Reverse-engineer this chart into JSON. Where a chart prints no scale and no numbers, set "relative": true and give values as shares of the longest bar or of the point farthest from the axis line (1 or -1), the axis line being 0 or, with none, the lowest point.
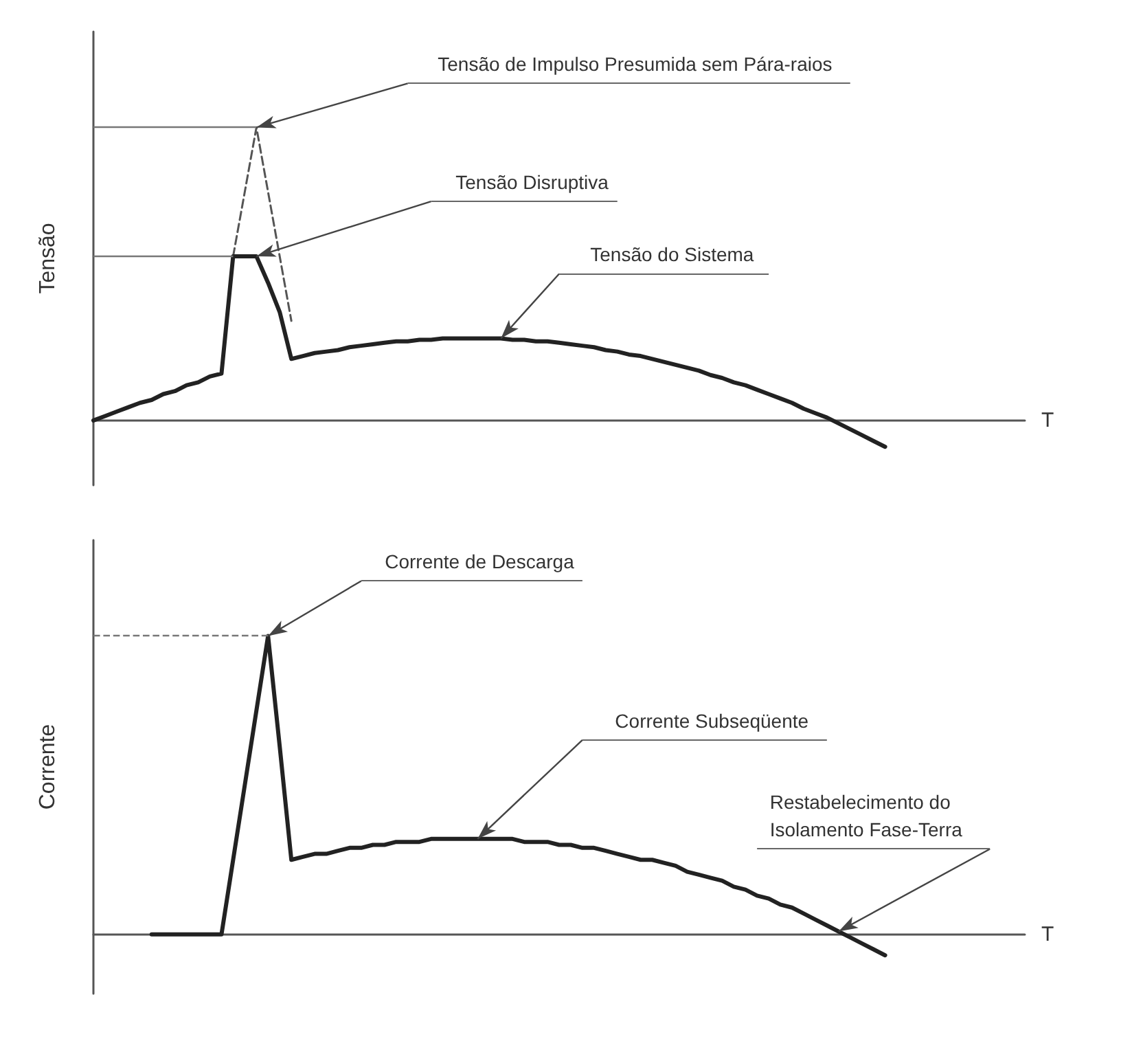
{
  "chart_data": [
    {
      "type": "line",
      "relative": true,
      "xlabel": "T",
      "ylabel": "Tensão",
      "grid": false,
      "marker": "none",
      "categories": [
        null,
        null,
        null,
        null,
        null,
        null,
        null,
        null,
        null,
        null,
        null,
        null,
        null,
        null,
        null,
        null,
        null,
        null,
        null,
        null,
        null,
        null,
        null,
        null,
        null,
        null,
        null,
        null,
        null,
        null,
        null,
        null,
        null,
        null,
        null,
        null,
        null,
        null,
        null,
        null,
        null,
        null,
        null,
        null,
        null,
        null,
        null,
        null,
        null,
        null,
        null,
        null,
        null,
        null,
        null,
        null,
        null,
        null,
        null,
        null,
        null,
        null,
        null,
        null,
        null,
        null,
        null,
        null,
        null,
        null,
        null,
        null,
        null,
        null,
        null,
        null,
        null,
        null,
        null,
        null,
        null
      ],
      "series": [
        {
          "color": "#222222",
          "values": [
            0,
            0.015,
            0.03,
            0.045,
            0.06,
            0.07,
            0.09,
            0.1,
            0.12,
            0.13,
            0.15,
            0.16,
            0.56,
            0.56,
            0.56,
            0.47,
            0.37,
            0.21,
            0.22,
            0.23,
            0.235,
            0.24,
            0.25,
            0.255,
            0.26,
            0.265,
            0.27,
            0.27,
            0.275,
            0.275,
            0.28,
            0.28,
            0.28,
            0.28,
            0.28,
            0.28,
            0.275,
            0.275,
            0.27,
            0.27,
            0.265,
            0.26,
            0.255,
            0.25,
            0.24,
            0.235,
            0.225,
            0.22,
            0.21,
            0.2,
            0.19,
            0.18,
            0.17,
            0.155,
            0.145,
            0.13,
            0.12,
            0.105,
            0.09,
            0.075,
            0.06,
            0.04,
            0.025,
            0.01,
            -0.01,
            -0.03,
            -0.05,
            -0.07,
            -0.09,
            null,
            null,
            null,
            null,
            null,
            null,
            null,
            null,
            null,
            null,
            null,
            null
          ]
        },
        {
          "color": "#555555",
          "line_style": "dashed",
          "values": [
            null,
            null,
            null,
            null,
            null,
            null,
            null,
            null,
            null,
            null,
            null,
            null,
            0.56,
            0.78,
            1,
            0.78,
            0.56,
            0.34,
            null,
            null,
            null,
            null,
            null,
            null,
            null,
            null,
            null,
            null,
            null,
            null,
            null,
            null,
            null,
            null,
            null,
            null,
            null,
            null,
            null,
            null,
            null,
            null,
            null,
            null,
            null,
            null,
            null,
            null,
            null,
            null,
            null,
            null,
            null,
            null,
            null,
            null,
            null,
            null,
            null,
            null,
            null,
            null,
            null,
            null,
            null,
            null,
            null,
            null,
            null,
            null,
            null,
            null,
            null,
            null,
            null,
            null,
            null,
            null,
            null,
            null,
            null
          ]
        }
      ],
      "ref_lines": [
        {
          "axis": "y",
          "value": 1,
          "color": "#777777",
          "line_style": "solid"
        },
        {
          "axis": "y",
          "value": 0.56,
          "color": "#777777",
          "line_style": "solid"
        }
      ],
      "annotations": [
        "Tensão de Impulso Presumida sem Pára-raios",
        "Tensão Disruptiva",
        "Tensão do Sistema"
      ]
    },
    {
      "type": "line",
      "relative": true,
      "xlabel": "T",
      "ylabel": "Corrente",
      "grid": false,
      "marker": "none",
      "categories": [
        null,
        null,
        null,
        null,
        null,
        null,
        null,
        null,
        null,
        null,
        null,
        null,
        null,
        null,
        null,
        null,
        null,
        null,
        null,
        null,
        null,
        null,
        null,
        null,
        null,
        null,
        null,
        null,
        null,
        null,
        null,
        null,
        null,
        null,
        null,
        null,
        null,
        null,
        null,
        null,
        null,
        null,
        null,
        null,
        null,
        null,
        null,
        null,
        null,
        null,
        null,
        null,
        null,
        null,
        null,
        null,
        null,
        null,
        null,
        null,
        null,
        null,
        null,
        null,
        null,
        null,
        null,
        null,
        null,
        null,
        null,
        null,
        null,
        null,
        null,
        null,
        null,
        null,
        null,
        null,
        null
      ],
      "series": [
        {
          "color": "#222222",
          "values": [
            null,
            null,
            null,
            null,
            null,
            0,
            0,
            0,
            0,
            0,
            0,
            0,
            0.25,
            0.5,
            0.75,
            1,
            0.63,
            0.25,
            0.26,
            0.27,
            0.27,
            0.28,
            0.29,
            0.29,
            0.3,
            0.3,
            0.31,
            0.31,
            0.31,
            0.32,
            0.32,
            0.32,
            0.32,
            0.32,
            0.32,
            0.32,
            0.32,
            0.31,
            0.31,
            0.31,
            0.3,
            0.3,
            0.29,
            0.29,
            0.28,
            0.27,
            0.26,
            0.25,
            0.25,
            0.24,
            0.23,
            0.21,
            0.2,
            0.19,
            0.18,
            0.16,
            0.15,
            0.13,
            0.12,
            0.1,
            0.09,
            0.07,
            0.05,
            0.03,
            0.01,
            -0.01,
            -0.03,
            -0.05,
            -0.07,
            null,
            null,
            null,
            null,
            null,
            null,
            null,
            null,
            null,
            null,
            null,
            null
          ]
        }
      ],
      "ref_lines": [
        {
          "axis": "y",
          "value": 1,
          "color": "#777777",
          "line_style": "dashed"
        }
      ],
      "annotations": [
        "Corrente de Descarga",
        "Corrente Subseqüente",
        "Restabelecimento do\nIsolamento Fase-Terra"
      ]
    }
  ]
}
